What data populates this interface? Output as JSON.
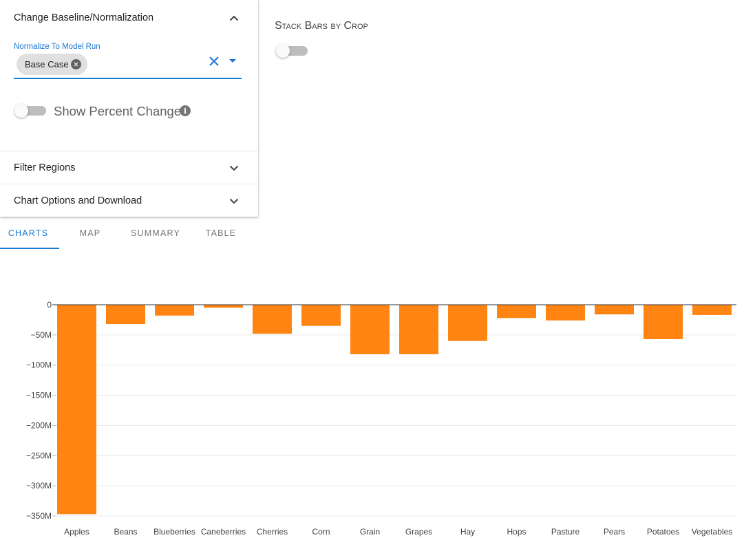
{
  "panel": {
    "baseline_section": {
      "title": "Change Baseline/Normalization",
      "expanded": true
    },
    "normalize": {
      "label": "Normalize To Model Run",
      "selected_chip": "Base Case"
    },
    "percent_change": {
      "label": "Show Percent Change",
      "on": false
    },
    "filter_regions": {
      "title": "Filter Regions",
      "expanded": false
    },
    "chart_options": {
      "title": "Chart Options and Download",
      "expanded": false
    }
  },
  "stack_toggle": {
    "label": "Stack Bars by Crop",
    "on": false
  },
  "tabs": [
    {
      "label": "CHARTS",
      "active": true
    },
    {
      "label": "MAP",
      "active": false
    },
    {
      "label": "SUMMARY",
      "active": false
    },
    {
      "label": "TABLE",
      "active": false
    }
  ],
  "colors": {
    "accent": "#1976d2",
    "bar": "#ff8411"
  },
  "icons": {
    "expand_less": "chevron-up-icon",
    "expand_more": "chevron-down-icon",
    "chip_delete": "cancel-circle-icon",
    "clear": "close-icon",
    "dropdown": "arrow-drop-down-icon",
    "info": "info-icon"
  },
  "chart_data": {
    "type": "bar",
    "categories": [
      "Apples",
      "Beans",
      "Blueberries",
      "Caneberries",
      "Cherries",
      "Corn",
      "Grain",
      "Grapes",
      "Hay",
      "Hops",
      "Pasture",
      "Pears",
      "Potatoes",
      "Vegetables"
    ],
    "values": [
      -347000000,
      -32000000,
      -18000000,
      -5000000,
      -48000000,
      -35000000,
      -82000000,
      -82000000,
      -60000000,
      -22000000,
      -26000000,
      -16000000,
      -57000000,
      -17000000
    ],
    "ylim": [
      -350000000,
      0
    ],
    "yticks": [
      0,
      -50000000,
      -100000000,
      -150000000,
      -200000000,
      -250000000,
      -300000000,
      -350000000
    ],
    "ytick_labels": [
      "0",
      "−50M",
      "−100M",
      "−150M",
      "−200M",
      "−250M",
      "−300M",
      "−350M"
    ],
    "grid": true,
    "title": "",
    "xlabel": "",
    "ylabel": ""
  }
}
